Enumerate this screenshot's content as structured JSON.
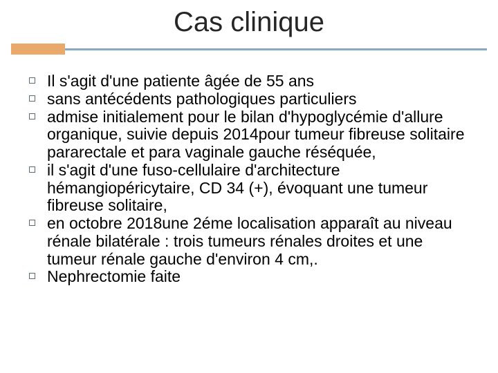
{
  "slide": {
    "title": "Cas clinique",
    "title_font_size": 40,
    "title_color": "#262626",
    "accent_color": "#e8a96b",
    "rule_color": "#8aa7c2",
    "background_color": "#ffffff",
    "bullet_outline_color": "#5d6b74",
    "body_font_size": 23,
    "body_color": "#000000",
    "bullets": [
      "Il s'agit d'une patiente âgée de 55 ans",
      "sans antécédents pathologiques particuliers",
      "admise initialement pour le bilan d'hypoglycémie d'allure organique, suivie depuis 2014pour tumeur fibreuse solitaire pararectale et para vaginale gauche réséquée,",
      "il s'agit d'une fuso-cellulaire d'architecture hémangiopéricytaire, CD 34 (+), évoquant une tumeur fibreuse solitaire,",
      "en octobre 2018une 2éme localisation apparaît au niveau rénale bilatérale : trois tumeurs rénales droites et une tumeur rénale gauche d'environ 4 cm,.",
      "Nephrectomie faite"
    ]
  }
}
